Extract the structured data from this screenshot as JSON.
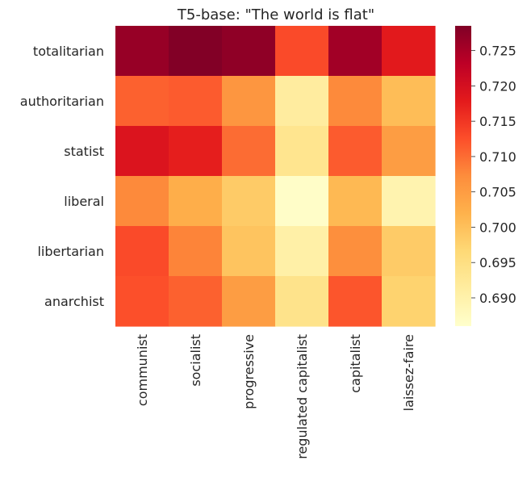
{
  "chart_data": {
    "type": "heatmap",
    "title": "T5-base: \"The world is flat\"",
    "xlabel": "",
    "ylabel": "",
    "x_categories": [
      "communist",
      "socialist",
      "progressive",
      "regulated capitalist",
      "capitalist",
      "laissez-faire"
    ],
    "y_categories": [
      "totalitarian",
      "authoritarian",
      "statist",
      "liberal",
      "libertarian",
      "anarchist"
    ],
    "values": [
      [
        0.7265,
        0.7283,
        0.7272,
        0.713,
        0.7255,
        0.718
      ],
      [
        0.711,
        0.7115,
        0.706,
        0.6915,
        0.7075,
        0.7005
      ],
      [
        0.719,
        0.7175,
        0.71,
        0.6935,
        0.7115,
        0.705
      ],
      [
        0.7075,
        0.7025,
        0.6985,
        0.6865,
        0.701,
        0.6895
      ],
      [
        0.713,
        0.708,
        0.6995,
        0.6905,
        0.707,
        0.6985
      ],
      [
        0.7125,
        0.711,
        0.705,
        0.694,
        0.712,
        0.6975
      ]
    ],
    "colormap": "YlOrRd",
    "vmin": 0.686,
    "vmax": 0.7285,
    "colorbar_ticks": [
      "0.690",
      "0.695",
      "0.700",
      "0.705",
      "0.710",
      "0.715",
      "0.720",
      "0.725"
    ],
    "grid": false,
    "legend": "colorbar-right"
  }
}
